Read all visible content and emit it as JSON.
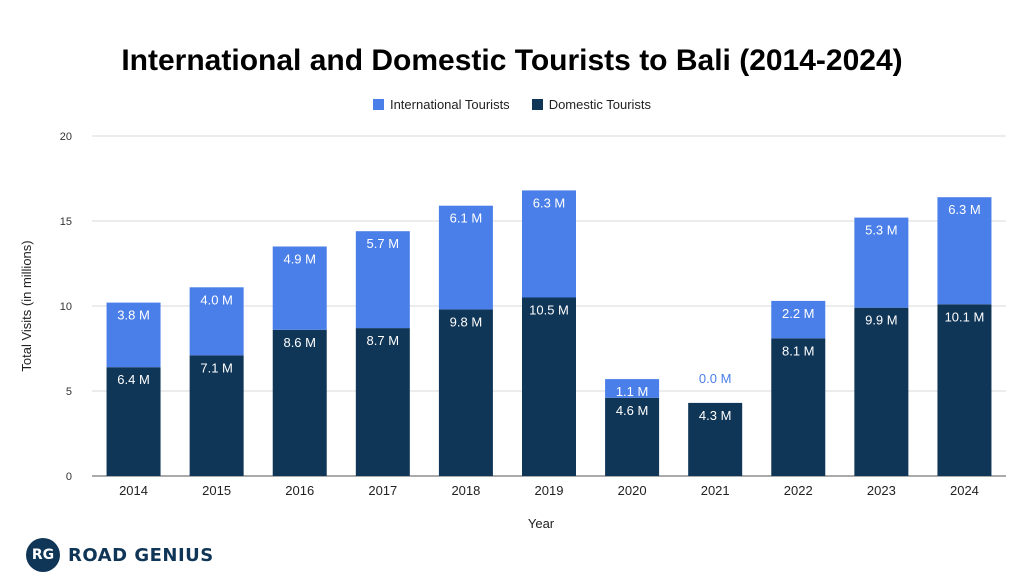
{
  "chart_data": {
    "type": "bar",
    "stacked": true,
    "title": "International and Domestic Tourists to Bali (2014-2024)",
    "xlabel": "Year",
    "ylabel": "Total Visits (in millions)",
    "ylim": [
      0,
      20
    ],
    "yticks": [
      0,
      5,
      10,
      15,
      20
    ],
    "grid": true,
    "legend_position": "top",
    "categories": [
      "2014",
      "2015",
      "2016",
      "2017",
      "2018",
      "2019",
      "2020",
      "2021",
      "2022",
      "2023",
      "2024"
    ],
    "series": [
      {
        "name": "Domestic Tourists",
        "color": "#0f3557",
        "values": [
          6.4,
          7.1,
          8.6,
          8.7,
          9.8,
          10.5,
          4.6,
          4.3,
          8.1,
          9.9,
          10.1
        ],
        "labels": [
          "6.4 M",
          "7.1 M",
          "8.6 M",
          "8.7 M",
          "9.8 M",
          "10.5 M",
          "4.6 M",
          "4.3 M",
          "8.1 M",
          "9.9 M",
          "10.1 M"
        ]
      },
      {
        "name": "International Tourists",
        "color": "#4a7ee8",
        "values": [
          3.8,
          4.0,
          4.9,
          5.7,
          6.1,
          6.3,
          1.1,
          0.0,
          2.2,
          5.3,
          6.3
        ],
        "labels": [
          "3.8 M",
          "4.0 M",
          "4.9 M",
          "5.7 M",
          "6.1 M",
          "6.3 M",
          "1.1 M",
          "0.0 M",
          "2.2 M",
          "5.3 M",
          "6.3 M"
        ]
      }
    ]
  },
  "legend": {
    "items": [
      {
        "label": "International Tourists",
        "color": "#4a7ee8"
      },
      {
        "label": "Domestic Tourists",
        "color": "#0f3557"
      }
    ]
  },
  "branding": {
    "logo_initials": "RG",
    "logo_text": "ROAD GENIUS"
  }
}
